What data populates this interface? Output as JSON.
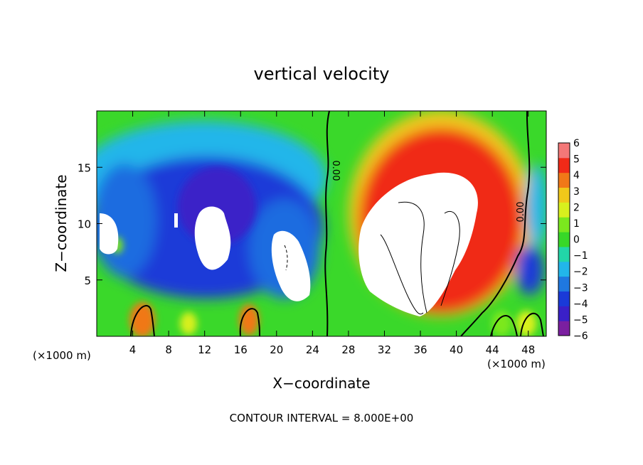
{
  "chart_data": {
    "type": "heatmap",
    "title": "vertical velocity",
    "xlabel": "X−coordinate",
    "ylabel": "Z−coordinate",
    "x_unit_left": "(×1000 m)",
    "x_unit_right": "(×1000 m)",
    "xlim": [
      0,
      50
    ],
    "ylim": [
      0,
      20
    ],
    "x_ticks": [
      4,
      8,
      12,
      16,
      20,
      24,
      28,
      32,
      36,
      40,
      44,
      48
    ],
    "y_ticks": [
      5,
      10,
      15
    ],
    "colorbar": {
      "ticks": [
        "6",
        "5",
        "4",
        "3",
        "2",
        "1",
        "0",
        "−1",
        "−2",
        "−3",
        "−4",
        "−5",
        "−6"
      ],
      "range": [
        -6,
        6
      ],
      "colors": [
        "#7b1fa0",
        "#3a20c8",
        "#1a3ad8",
        "#1f78e0",
        "#22b6ea",
        "#22d6a8",
        "#38d828",
        "#7be81e",
        "#d8f01e",
        "#f0c81a",
        "#f07818",
        "#f02a18",
        "#f47878"
      ]
    },
    "contour_labels": [
      "0.00",
      "0.00"
    ],
    "footer": "CONTOUR INTERVAL = 8.000E+00"
  }
}
